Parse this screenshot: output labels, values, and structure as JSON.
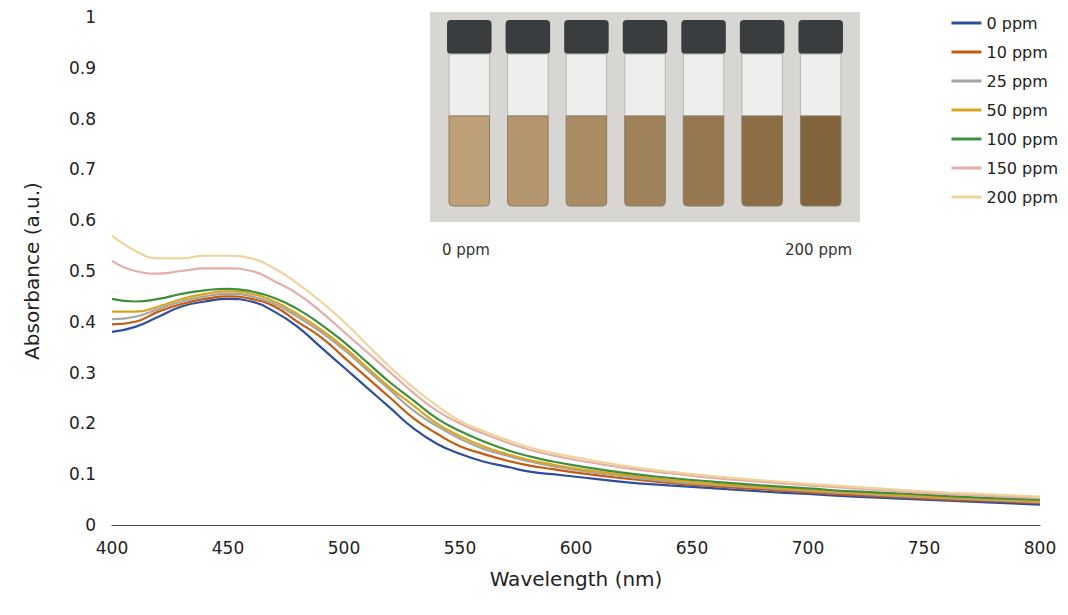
{
  "chart_data": {
    "type": "line",
    "x_label": "Wavelength (nm)",
    "y_label": "Absorbance (a.u.)",
    "x": [
      400,
      410,
      420,
      430,
      440,
      450,
      460,
      470,
      480,
      490,
      500,
      510,
      520,
      530,
      540,
      550,
      560,
      570,
      580,
      590,
      600,
      620,
      640,
      660,
      680,
      700,
      720,
      740,
      760,
      780,
      800
    ],
    "series": [
      {
        "name": "0 ppm",
        "color": "#2f4e9e",
        "values": [
          0.38,
          0.39,
          0.41,
          0.43,
          0.44,
          0.445,
          0.44,
          0.42,
          0.39,
          0.35,
          0.31,
          0.27,
          0.23,
          0.19,
          0.16,
          0.14,
          0.125,
          0.115,
          0.105,
          0.1,
          0.095,
          0.085,
          0.078,
          0.072,
          0.066,
          0.061,
          0.056,
          0.052,
          0.048,
          0.044,
          0.04
        ]
      },
      {
        "name": "10 ppm",
        "color": "#c55a11",
        "values": [
          0.395,
          0.4,
          0.42,
          0.435,
          0.445,
          0.45,
          0.445,
          0.43,
          0.4,
          0.37,
          0.33,
          0.29,
          0.25,
          0.21,
          0.18,
          0.155,
          0.14,
          0.127,
          0.117,
          0.11,
          0.103,
          0.092,
          0.083,
          0.076,
          0.07,
          0.064,
          0.059,
          0.055,
          0.05,
          0.047,
          0.043
        ]
      },
      {
        "name": "25 ppm",
        "color": "#a5a5a5",
        "values": [
          0.405,
          0.41,
          0.425,
          0.44,
          0.45,
          0.455,
          0.45,
          0.435,
          0.41,
          0.38,
          0.345,
          0.305,
          0.265,
          0.225,
          0.195,
          0.17,
          0.15,
          0.137,
          0.125,
          0.116,
          0.108,
          0.096,
          0.086,
          0.079,
          0.073,
          0.067,
          0.062,
          0.057,
          0.053,
          0.049,
          0.045
        ]
      },
      {
        "name": "50 ppm",
        "color": "#d9a520",
        "values": [
          0.42,
          0.42,
          0.43,
          0.445,
          0.455,
          0.46,
          0.455,
          0.44,
          0.415,
          0.385,
          0.35,
          0.31,
          0.27,
          0.235,
          0.2,
          0.175,
          0.155,
          0.14,
          0.128,
          0.119,
          0.111,
          0.099,
          0.089,
          0.081,
          0.075,
          0.069,
          0.064,
          0.059,
          0.055,
          0.051,
          0.047
        ]
      },
      {
        "name": "100 ppm",
        "color": "#3f8f3a",
        "values": [
          0.445,
          0.44,
          0.445,
          0.455,
          0.462,
          0.465,
          0.46,
          0.447,
          0.425,
          0.395,
          0.36,
          0.32,
          0.28,
          0.245,
          0.21,
          0.185,
          0.165,
          0.148,
          0.135,
          0.125,
          0.117,
          0.103,
          0.093,
          0.085,
          0.078,
          0.072,
          0.066,
          0.062,
          0.057,
          0.053,
          0.05
        ]
      },
      {
        "name": "150 ppm",
        "color": "#e3aea8",
        "values": [
          0.52,
          0.5,
          0.495,
          0.5,
          0.505,
          0.505,
          0.5,
          0.48,
          0.455,
          0.42,
          0.38,
          0.34,
          0.3,
          0.26,
          0.225,
          0.2,
          0.18,
          0.163,
          0.148,
          0.137,
          0.128,
          0.113,
          0.102,
          0.092,
          0.085,
          0.078,
          0.072,
          0.066,
          0.061,
          0.057,
          0.053
        ]
      },
      {
        "name": "200 ppm",
        "color": "#f0d39a",
        "values": [
          0.57,
          0.54,
          0.525,
          0.525,
          0.53,
          0.53,
          0.525,
          0.505,
          0.475,
          0.44,
          0.4,
          0.355,
          0.31,
          0.27,
          0.235,
          0.205,
          0.185,
          0.168,
          0.153,
          0.142,
          0.133,
          0.117,
          0.105,
          0.096,
          0.088,
          0.081,
          0.075,
          0.069,
          0.064,
          0.06,
          0.056
        ]
      }
    ],
    "xlim": [
      400,
      800
    ],
    "xticks": [
      400,
      450,
      500,
      550,
      600,
      650,
      700,
      750,
      800
    ],
    "ylim": [
      0,
      1
    ],
    "yticks": [
      0,
      0.1,
      0.2,
      0.3,
      0.4,
      0.5,
      0.6,
      0.7,
      0.8,
      0.9,
      1
    ],
    "grid": false,
    "legend": "top-right",
    "annotations": [
      "0 ppm",
      "200 ppm"
    ]
  }
}
